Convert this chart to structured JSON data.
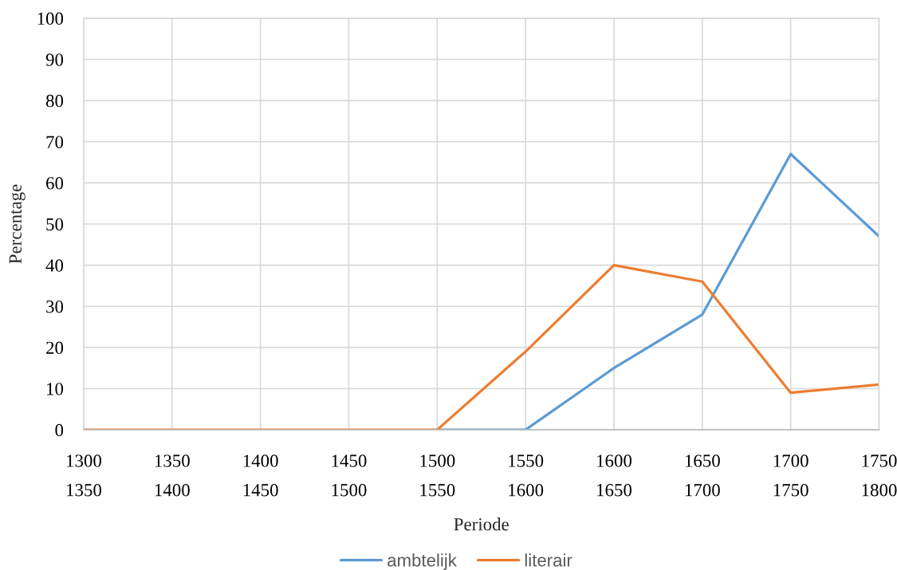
{
  "chart_data": {
    "type": "line",
    "xlabel": "Periode",
    "ylabel": "Percentage",
    "categories": [
      "1300\n1350",
      "1350\n1400",
      "1400\n1450",
      "1450\n1500",
      "1500\n1550",
      "1550\n1600",
      "1600\n1650",
      "1650\n1700",
      "1700\n1750",
      "1750\n1800"
    ],
    "series": [
      {
        "name": "ambtelijk",
        "color": "#5b9bd5",
        "values": [
          null,
          null,
          null,
          null,
          0,
          0,
          15,
          28,
          67,
          47
        ]
      },
      {
        "name": "literair",
        "color": "#ed7d31",
        "values": [
          0,
          0,
          0,
          0,
          0,
          19,
          40,
          36,
          9,
          11
        ]
      }
    ],
    "ylim": [
      0,
      100
    ],
    "yticks": [
      0,
      10,
      20,
      30,
      40,
      50,
      60,
      70,
      80,
      90,
      100
    ],
    "grid": true,
    "legend": "bottom",
    "line_style": "solid"
  }
}
